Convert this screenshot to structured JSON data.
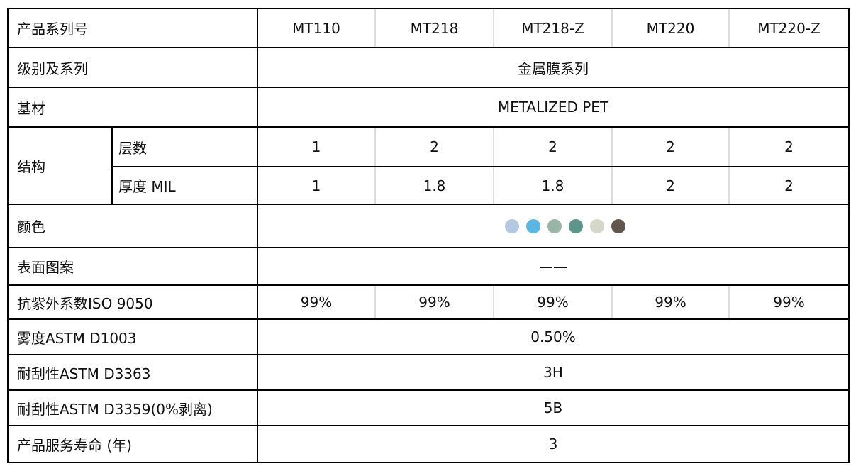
{
  "table": {
    "header": {
      "label": "产品系列号",
      "products": [
        "MT110",
        "MT218",
        "MT218-Z",
        "MT220",
        "MT220-Z"
      ]
    },
    "rows": [
      {
        "label": "级别及系列",
        "value": "金属膜系列"
      },
      {
        "label": "基材",
        "value": "METALIZED PET"
      },
      {
        "label": "结构",
        "sub": [
          {
            "label": "层数",
            "values": [
              1,
              2,
              2,
              2,
              2
            ]
          },
          {
            "label": "厚度 MIL",
            "values": [
              1,
              1.8,
              1.8,
              2,
              2
            ]
          }
        ]
      },
      {
        "label": "颜色",
        "swatches": [
          "#b4c8e2",
          "#5bb6e2",
          "#98b5a5",
          "#5e958a",
          "#d5d8c8",
          "#62574f"
        ]
      },
      {
        "label": "表面图案",
        "value": "——"
      },
      {
        "label": "抗紫外系数ISO 9050",
        "values": [
          "99%",
          "99%",
          "99%",
          "99%",
          "99%"
        ]
      },
      {
        "label": "雾度ASTM D1003",
        "value": "0.50%"
      },
      {
        "label": "耐刮性ASTM D3363",
        "value": "3H"
      },
      {
        "label": "耐刮性ASTM D3359(0%剥离)",
        "value": "5B"
      },
      {
        "label": "产品服务寿命 (年)",
        "value": "3"
      }
    ]
  }
}
